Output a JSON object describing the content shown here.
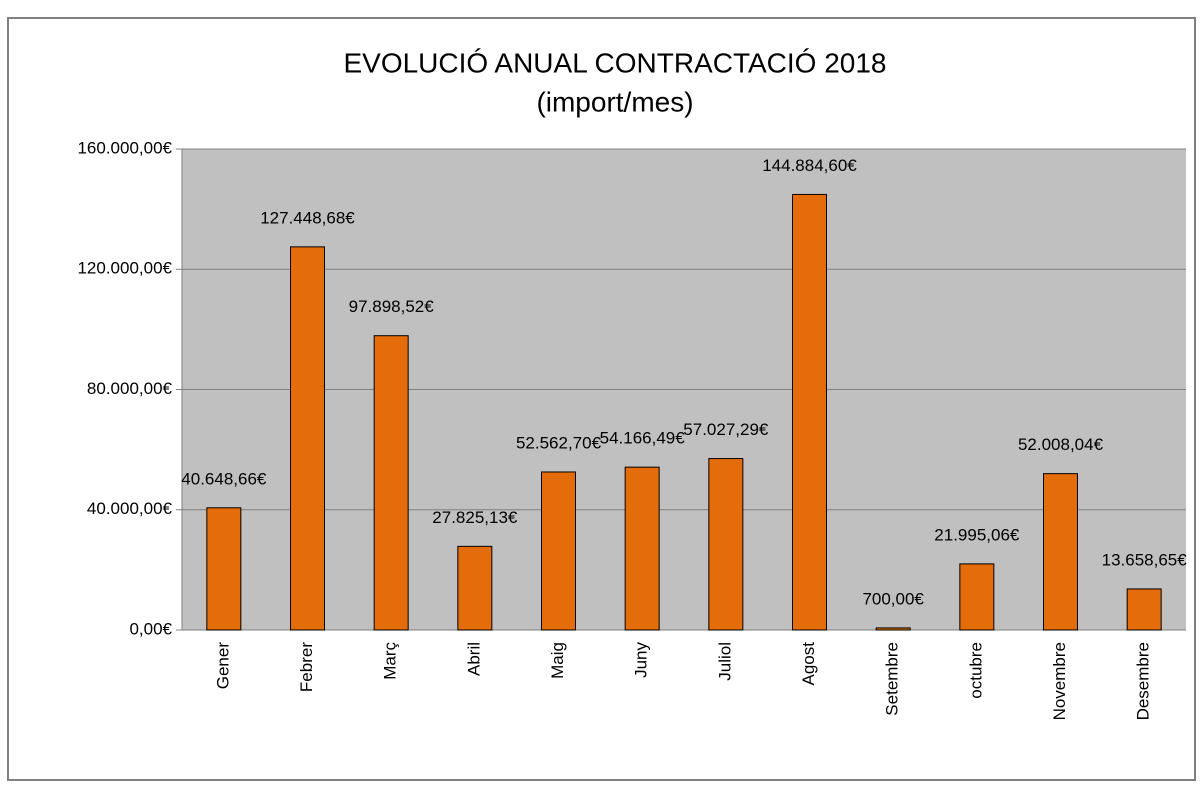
{
  "chart_data": {
    "type": "bar",
    "title": "EVOLUCIÓ ANUAL CONTRACTACIÓ 2018",
    "subtitle": "(import/mes)",
    "categories": [
      "Gener",
      "Febrer",
      "Març",
      "Abril",
      "Maig",
      "Juny",
      "Juliol",
      "Agost",
      "Setembre",
      "octubre",
      "Novembre",
      "Desembre"
    ],
    "values": [
      40648.66,
      127448.68,
      97898.52,
      27825.13,
      52562.7,
      54166.49,
      57027.29,
      144884.6,
      700,
      21995.06,
      52008.04,
      13658.65
    ],
    "value_labels": [
      "40.648,66€",
      "127.448,68€",
      "97.898,52€",
      "27.825,13€",
      "52.562,70€",
      "54.166,49€",
      "57.027,29€",
      "144.884,60€",
      "700,00€",
      "21.995,06€",
      "52.008,04€",
      "13.658,65€"
    ],
    "color": "#e46c0a",
    "ylim": [
      0,
      160000
    ],
    "yticks": [
      {
        "value": 0,
        "label": "0,00€"
      },
      {
        "value": 40000,
        "label": "40.000,00€"
      },
      {
        "value": 80000,
        "label": "80.000,00€"
      },
      {
        "value": 120000,
        "label": "120.000,00€"
      },
      {
        "value": 160000,
        "label": "160.000,00€"
      }
    ],
    "grid": true
  }
}
